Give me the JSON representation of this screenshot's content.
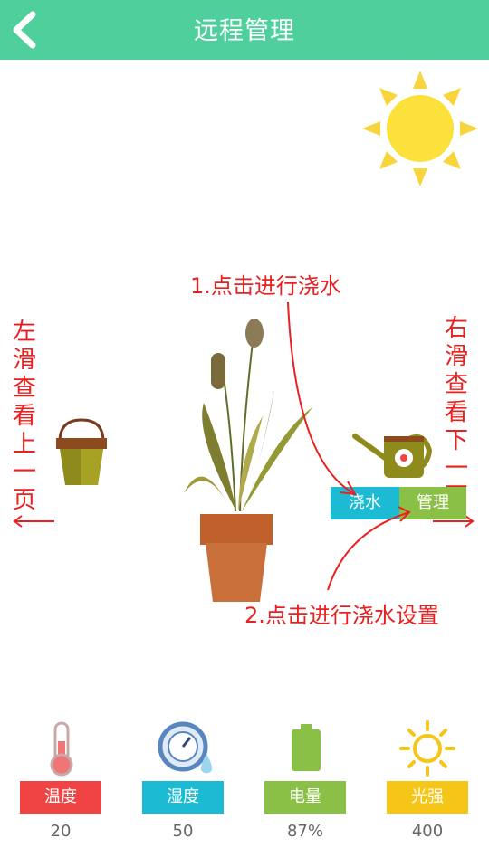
{
  "header": {
    "title": "远程管理"
  },
  "hints": {
    "left": "左滑查看上一页",
    "right": "右滑查看下一页",
    "water_tip": "1.点击进行浇水",
    "manage_tip": "2.点击进行浇水设置"
  },
  "actions": {
    "water_label": "浇水",
    "manage_label": "管理"
  },
  "stats": [
    {
      "label": "温度",
      "value": "20",
      "color": "#f04444"
    },
    {
      "label": "湿度",
      "value": "50",
      "color": "#1dbad3"
    },
    {
      "label": "电量",
      "value": "87%",
      "color": "#8ac045"
    },
    {
      "label": "光强",
      "value": "400",
      "color": "#f5c518"
    }
  ],
  "icons": [
    "back-icon",
    "sun-icon",
    "bucket-icon",
    "plant-pot-icon",
    "watering-can-icon",
    "thermometer-icon",
    "humidity-gauge-icon",
    "battery-icon",
    "light-sun-icon"
  ]
}
